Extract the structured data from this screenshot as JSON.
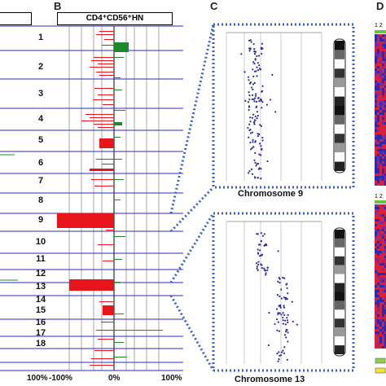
{
  "panel_b": {
    "letter": "B",
    "header": "CD4⁺CD56⁺HN",
    "chromosomes": [
      "1",
      "2",
      "3",
      "4",
      "5",
      "6",
      "7",
      "8",
      "9",
      "10",
      "11",
      "12",
      "13",
      "14",
      "15",
      "16",
      "17",
      "18"
    ],
    "axis_labels": {
      "left_panel_right": "100%",
      "left": "-100%",
      "center": "0%",
      "right": "100%"
    }
  },
  "panel_c": {
    "letter": "C",
    "captions": [
      "Chromosome 9",
      "Chromosome 13"
    ]
  },
  "panel_d": {
    "letter": "D",
    "header_top": "1 2",
    "header_bottom": "1 2"
  },
  "colors": {
    "loss": "#e8141b",
    "gain": "#1a8a2a",
    "grid": "#2b2bb8",
    "zoom": "#3a5fc8",
    "heat_red": "#d8203a",
    "heat_blue": "#2a2ab0"
  }
}
